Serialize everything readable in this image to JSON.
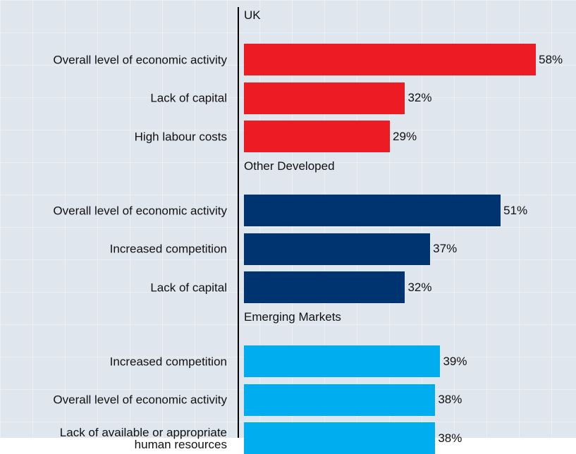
{
  "chart_data": {
    "type": "bar",
    "orientation": "horizontal",
    "groups": [
      {
        "name": "UK",
        "color": "#ed1c24",
        "categories": [
          "Overall level of economic activity",
          "Lack of capital",
          "High labour costs"
        ],
        "values": [
          58,
          32,
          29
        ],
        "value_labels": [
          "58%",
          "32%",
          "29%"
        ]
      },
      {
        "name": "Other Developed",
        "color": "#003471",
        "categories": [
          "Overall level of economic activity",
          "Increased competition",
          "Lack of capital"
        ],
        "values": [
          51,
          37,
          32
        ],
        "value_labels": [
          "51%",
          "37%",
          "32%"
        ]
      },
      {
        "name": "Emerging Markets",
        "color": "#00aeef",
        "categories": [
          "Increased competition",
          "Overall level of economic activity",
          "Lack of available or appropriate\nhuman resources"
        ],
        "values": [
          39,
          38,
          38
        ],
        "value_labels": [
          "39%",
          "38%",
          "38%"
        ]
      }
    ]
  }
}
